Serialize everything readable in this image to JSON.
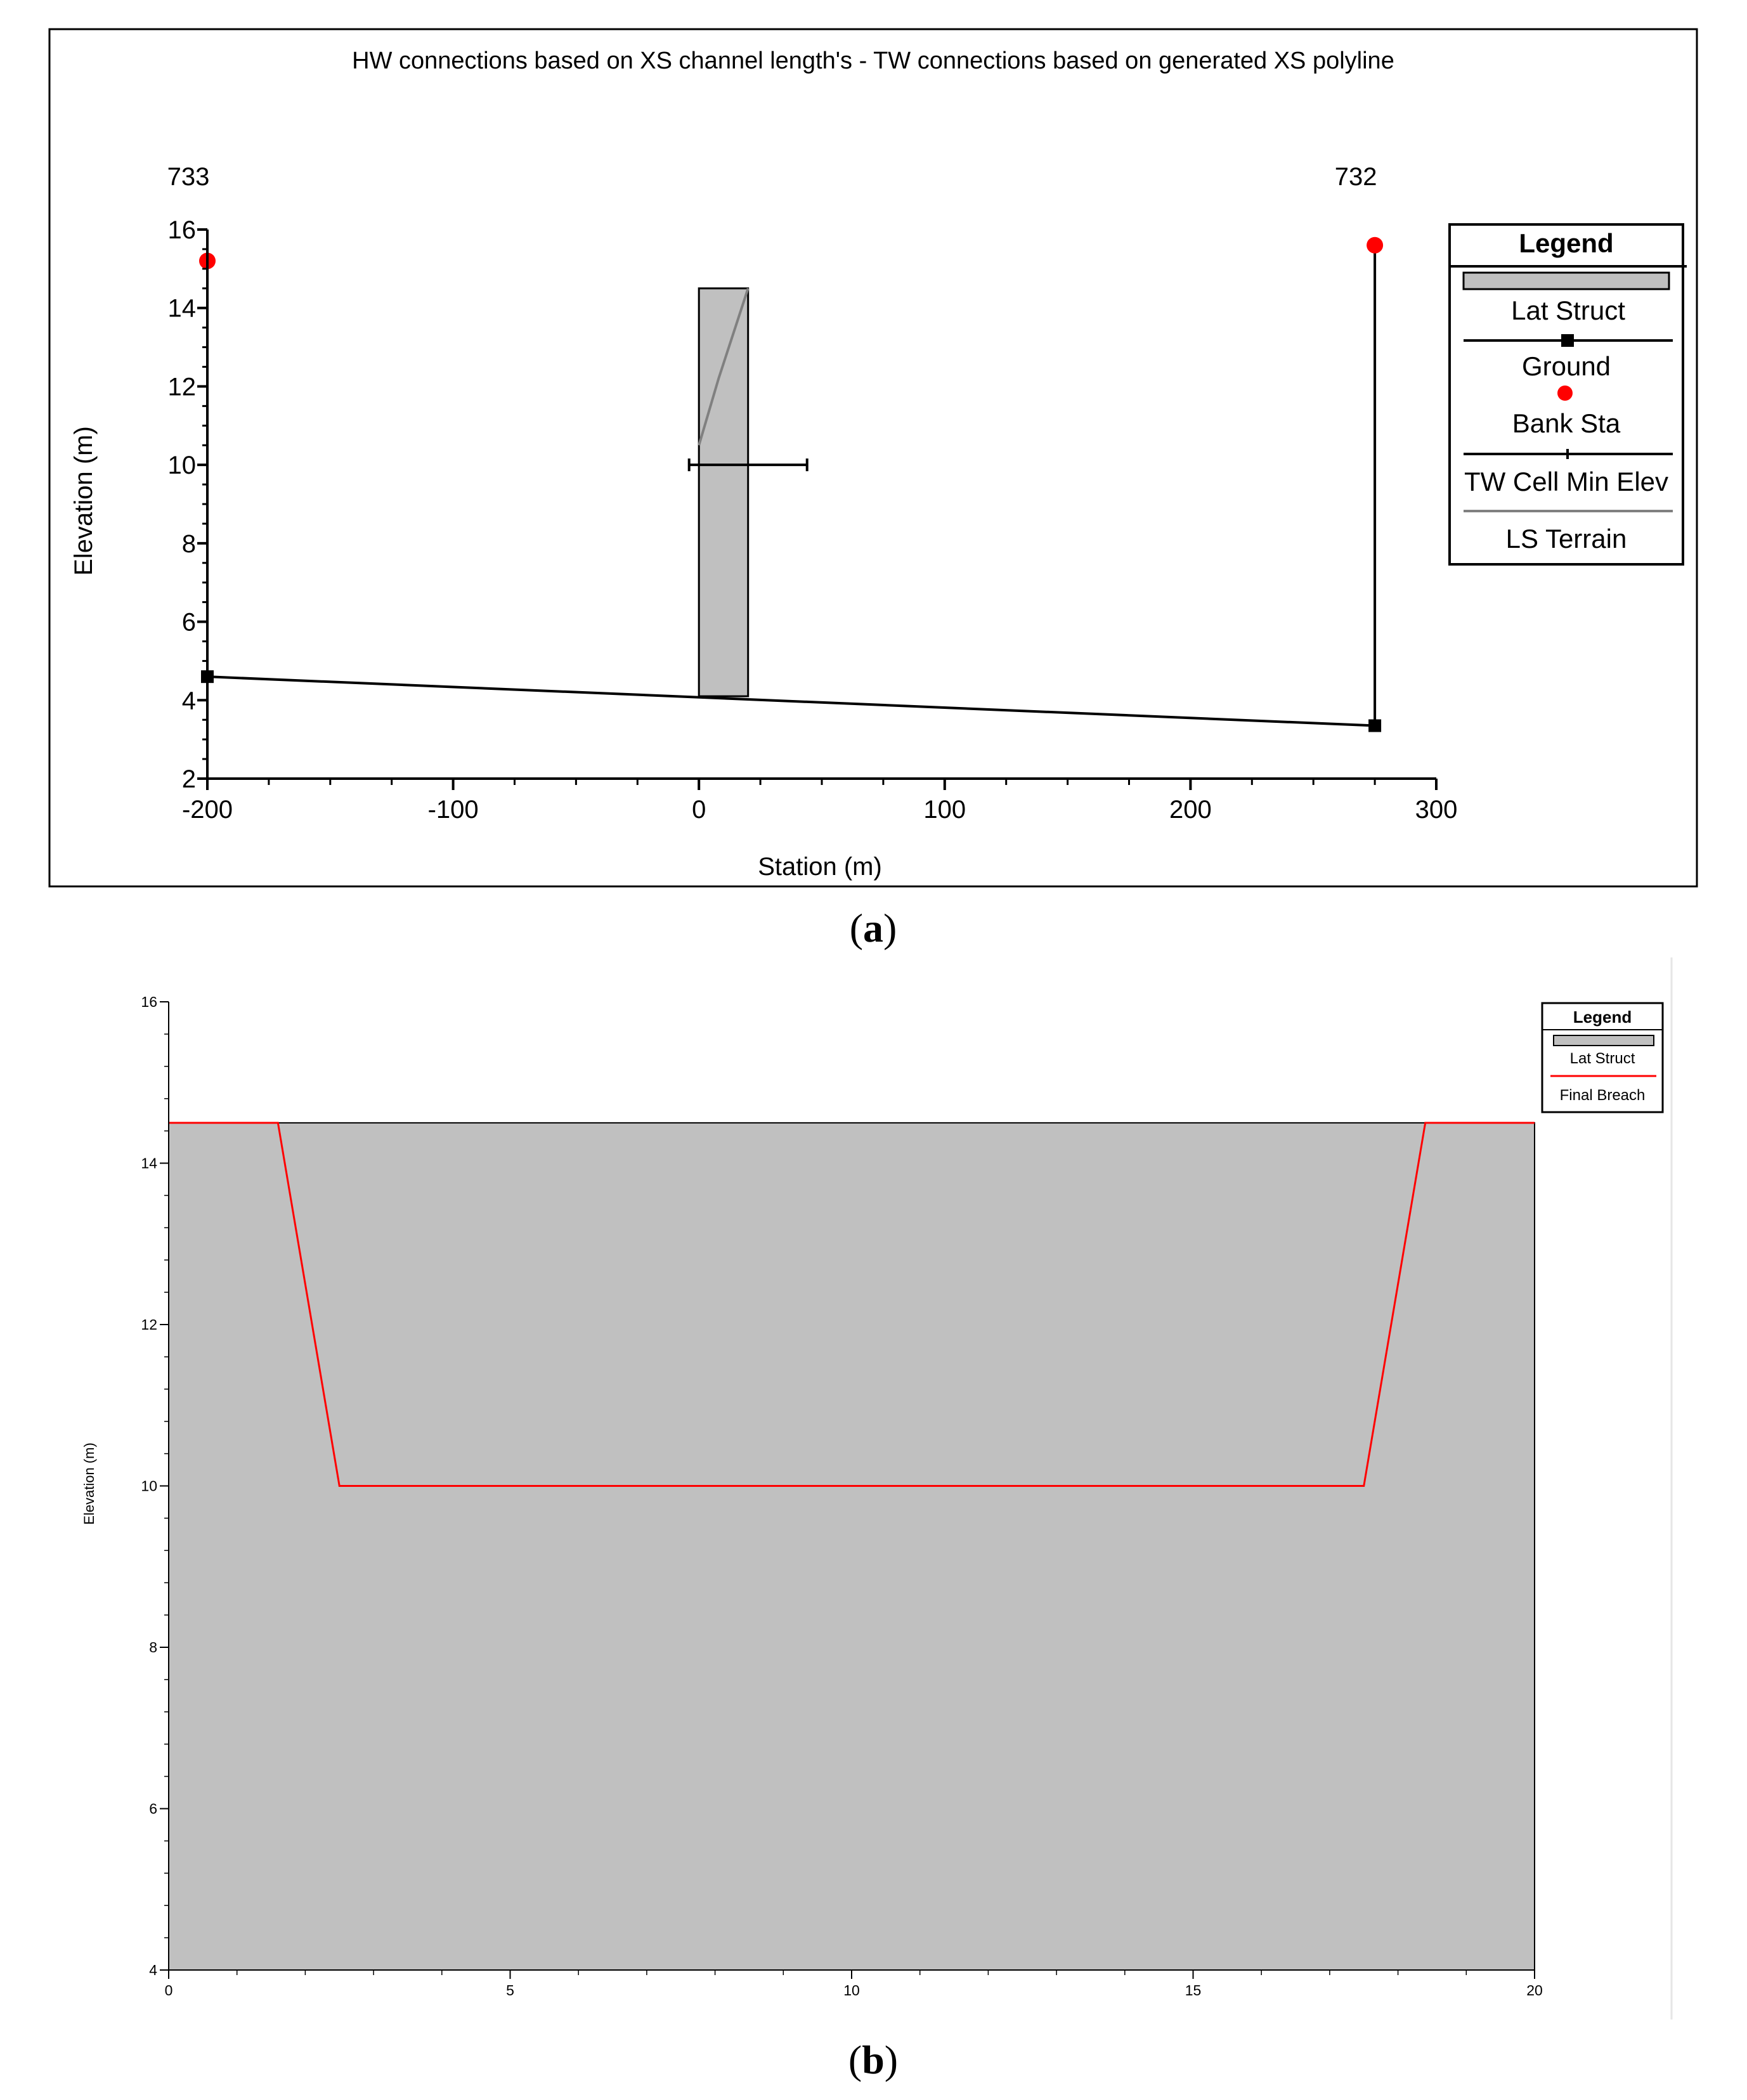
{
  "chart_data": [
    {
      "panel_label_prefix": "(",
      "panel_label_letter": "a",
      "panel_label_suffix": ")",
      "type": "line",
      "title": "HW connections based on XS channel length's - TW connections based on generated XS polyline",
      "xlabel": "Station (m)",
      "ylabel": "Elevation (m)",
      "xlim": [
        -200,
        300
      ],
      "ylim": [
        2,
        16
      ],
      "xticks": [
        -200,
        -100,
        0,
        100,
        200,
        300
      ],
      "yticks": [
        2,
        4,
        6,
        8,
        10,
        12,
        14,
        16
      ],
      "xs_labels": [
        {
          "x": -200,
          "text": "733"
        },
        {
          "x": 275,
          "text": "732"
        }
      ],
      "legend_position": "right",
      "legend": {
        "title": "Legend",
        "items": [
          "Lat Struct",
          "Ground",
          "Bank Sta",
          "TW Cell Min Elev",
          "LS Terrain"
        ]
      },
      "series": [
        {
          "name": "Lat Struct",
          "kind": "rect",
          "x": [
            0,
            20
          ],
          "y": [
            4.1,
            14.5
          ],
          "color": "#c0c0c0"
        },
        {
          "name": "Ground",
          "kind": "line",
          "points": [
            [
              -200,
              4.6
            ],
            [
              275,
              3.35
            ]
          ],
          "color": "#000000"
        },
        {
          "name": "Bank Sta",
          "kind": "point",
          "points": [
            [
              -200,
              15.2
            ],
            [
              275,
              15.6
            ]
          ],
          "color": "#ff0000"
        },
        {
          "name": "TW Cell Min Elev",
          "kind": "hline",
          "x": [
            -4,
            44
          ],
          "y": 10.0,
          "color": "#000000"
        },
        {
          "name": "LS Terrain",
          "kind": "line",
          "points": [
            [
              0,
              10.5
            ],
            [
              8,
              12.2
            ],
            [
              20,
              14.5
            ]
          ],
          "color": "#808080"
        }
      ],
      "verticals": [
        {
          "x": 275,
          "y": [
            3.35,
            15.6
          ]
        },
        {
          "x": -200,
          "y": [
            4.6,
            15.2
          ]
        }
      ]
    },
    {
      "panel_label_prefix": "(",
      "panel_label_letter": "b",
      "panel_label_suffix": ")",
      "type": "area",
      "xlabel": "",
      "ylabel": "Elevation (m)",
      "xlim": [
        0,
        20
      ],
      "ylim": [
        4,
        16
      ],
      "xticks": [
        0,
        5,
        10,
        15,
        20
      ],
      "yticks": [
        4,
        6,
        8,
        10,
        12,
        14,
        16
      ],
      "legend_position": "top-right",
      "legend": {
        "title": "Legend",
        "items": [
          "Lat Struct",
          "Final Breach"
        ]
      },
      "series": [
        {
          "name": "Lat Struct",
          "kind": "rect",
          "x": [
            0,
            20
          ],
          "y": [
            4,
            14.5
          ],
          "color": "#c0c0c0"
        },
        {
          "name": "Final Breach",
          "kind": "line",
          "points": [
            [
              0,
              14.5
            ],
            [
              1.6,
              14.5
            ],
            [
              2.5,
              10.0
            ],
            [
              17.5,
              10.0
            ],
            [
              18.4,
              14.5
            ],
            [
              20,
              14.5
            ]
          ],
          "color": "#ff0000"
        }
      ]
    }
  ]
}
